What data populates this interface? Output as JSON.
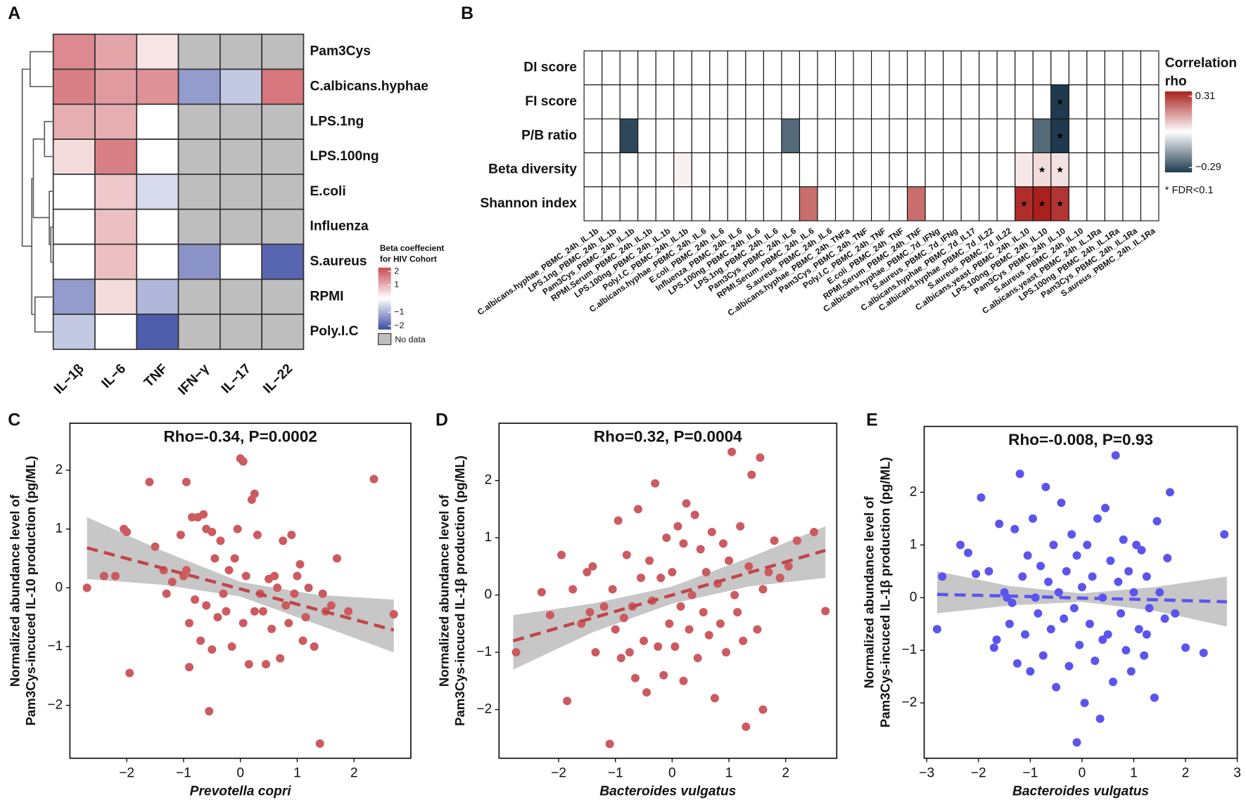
{
  "chart_data": [
    {
      "type": "heatmap",
      "panel": "A",
      "rows": [
        "Pam3Cys",
        "C.albicans.hyphae",
        "LPS.1ng",
        "LPS.100ng",
        "E.coli",
        "Influenza",
        "S.aureus",
        "RPMI",
        "Poly.I.C"
      ],
      "columns": [
        "IL−1β",
        "IL−6",
        "TNF",
        "IFN−γ",
        "IL−17",
        "IL−22"
      ],
      "values": [
        [
          1.3,
          1.0,
          0.3,
          null,
          null,
          null
        ],
        [
          1.4,
          1.1,
          1.2,
          -1.1,
          -0.6,
          1.5
        ],
        [
          0.9,
          0.9,
          0,
          null,
          null,
          null
        ],
        [
          0.4,
          1.4,
          0,
          null,
          null,
          null
        ],
        [
          0,
          0.6,
          -0.4,
          null,
          null,
          null
        ],
        [
          0,
          0.7,
          0,
          null,
          null,
          null
        ],
        [
          0,
          0.7,
          0,
          -1.2,
          0,
          -1.7
        ],
        [
          -1.1,
          0.4,
          -0.8,
          null,
          null,
          null
        ],
        [
          -0.6,
          0,
          -1.8,
          null,
          null,
          null
        ]
      ],
      "clim": [
        -2,
        2
      ],
      "colors": {
        "low": "#3a4ba3",
        "mid": "#ffffff",
        "high": "#c94a52",
        "na": "#bebebe"
      },
      "legend_title": [
        "Beta coeffecient",
        "for HIV Cohort"
      ],
      "legend_ticks": [
        2,
        1,
        {
          "value": -1,
          "label": "−1"
        },
        {
          "value": -2,
          "label": "−2"
        }
      ],
      "na_label": "No data"
    },
    {
      "type": "heatmap",
      "panel": "B",
      "rows": [
        "DI score",
        "FI score",
        "P/B ratio",
        "Beta diversity",
        "Shannon index"
      ],
      "columns": [
        "C.albicans.hyphae_PBMC_24h_IL.1b",
        "LPS.1ng_PBMC_24h_IL.1b",
        "Pam3Cys_PBMC_24h_IL.1b",
        "RPMI.Serum_PBMC_24h_IL.1b",
        "LPS.100ng_PBMC_24h_IL.1b",
        "Poly.I.C_PBMC_24h_IL.1b",
        "C.albicans.hyphae_PBMC_24h_IL.6",
        "E.coli_PBMC_24h_IL.6",
        "Influenza_PBMC_24h_IL.6",
        "LPS.100ng_PBMC_24h_IL.6",
        "LPS.1ng_PBMC_24h_IL.6",
        "Pam3Cys_PBMC_24h_IL.6",
        "RPMI.Serum_PBMC_24h_IL.6",
        "S.aureus_PBMC_24h_IL.6",
        "C.albicans.hyphae_PBMC_24h_TNFa",
        "Pam3Cys_PBMC_24h_TNF",
        "Poly.I.C_PBMC_24h_TNF",
        "E.coli_PBMC_24h_TNF",
        "RPMI.Serum_PBMC_24h_TNF",
        "C.albicans.hyphae_PBMC_7d_IFNg",
        "S.aureus_PBMC_7d_IFNg",
        "C.albicans.hyphae_PBMC_7d_IL17",
        "C.albicans.hyphae_PBMC_7d_IL22",
        "S.aureus_PBMC_7d_IL22",
        "C.albicans.yeast_PBMC_24h_IL.10",
        "LPS.100ng_PBMC_24h_IL.10",
        "Pam3Cys_PBMC_24h_IL.10",
        "S.aureus_PBMC_24h_IL.10",
        "C.albicans.yeast_PBMC_24h_IL.1Ra",
        "LPS.100ng_PBMC_24h_IL.1Ra",
        "Pam3Cys_PBMC_24h_IL.1Ra",
        "S.aureus_PBMC_24h_IL.1Ra"
      ],
      "values": [
        [
          null,
          null,
          null,
          null,
          null,
          null,
          null,
          null,
          null,
          null,
          null,
          null,
          null,
          null,
          null,
          null,
          null,
          null,
          null,
          null,
          null,
          null,
          null,
          null,
          null,
          null,
          null,
          null,
          null,
          null,
          null,
          null
        ],
        [
          null,
          null,
          null,
          null,
          null,
          null,
          null,
          null,
          null,
          null,
          null,
          null,
          null,
          null,
          null,
          null,
          null,
          null,
          null,
          null,
          null,
          null,
          null,
          null,
          null,
          null,
          -0.29,
          null,
          null,
          null,
          null,
          null
        ],
        [
          null,
          null,
          -0.27,
          null,
          null,
          null,
          null,
          null,
          null,
          null,
          null,
          -0.22,
          null,
          null,
          null,
          null,
          null,
          null,
          null,
          null,
          null,
          null,
          null,
          null,
          null,
          -0.22,
          -0.29,
          null,
          null,
          null,
          null,
          null
        ],
        [
          null,
          null,
          null,
          null,
          null,
          0.02,
          null,
          null,
          null,
          null,
          null,
          null,
          null,
          null,
          null,
          null,
          null,
          null,
          null,
          null,
          null,
          null,
          null,
          null,
          0.03,
          0.05,
          0.04,
          null,
          null,
          null,
          null,
          null
        ],
        [
          null,
          null,
          null,
          null,
          null,
          null,
          null,
          null,
          null,
          null,
          null,
          null,
          0.2,
          null,
          null,
          null,
          null,
          null,
          0.2,
          null,
          null,
          null,
          null,
          null,
          0.29,
          0.31,
          0.28,
          null,
          null,
          null,
          null,
          null
        ]
      ],
      "significant": [
        [
          1,
          26
        ],
        [
          2,
          26
        ],
        [
          3,
          25
        ],
        [
          3,
          26
        ],
        [
          4,
          24
        ],
        [
          4,
          25
        ],
        [
          4,
          26
        ]
      ],
      "sig_label": "* FDR<0.1",
      "clim": [
        -0.29,
        0.31
      ],
      "colors": {
        "low": "#1f3a4e",
        "mid": "#ffffff",
        "high": "#a9201d"
      },
      "legend_title": [
        "Correlation",
        "rho"
      ],
      "legend_ticks": [
        0.31,
        {
          "value": -0.29,
          "label": "−0.29"
        }
      ]
    },
    {
      "type": "scatter",
      "panel": "C",
      "title": "Rho=-0.34, P=0.0002",
      "xlabel": "Prevotella copri",
      "ylabel": [
        "Normalized abundance level of",
        "Pam3Cys-incuced IL-10 production (pg/ML)"
      ],
      "color": "#cc5a5f",
      "line_color": "#c0454b",
      "xlim": [
        -3,
        3
      ],
      "ylim": [
        -2.9,
        2.8
      ],
      "xticks": [
        {
          "value": -2,
          "label": "−2"
        },
        {
          "value": -1,
          "label": "−1"
        },
        0,
        1,
        2
      ],
      "yticks": [
        {
          "value": -2,
          "label": "−2"
        },
        {
          "value": -1,
          "label": "−1"
        },
        0,
        1,
        2
      ],
      "x": [
        -2.7,
        -2.4,
        -2.2,
        -2.05,
        -2.0,
        -1.95,
        -1.6,
        -1.5,
        -1.35,
        -1.3,
        -1.2,
        -1.05,
        -1.0,
        -0.95,
        -0.95,
        -0.9,
        -0.9,
        -0.85,
        -0.8,
        -0.75,
        -0.7,
        -0.65,
        -0.6,
        -0.6,
        -0.55,
        -0.5,
        -0.5,
        -0.45,
        -0.4,
        -0.35,
        -0.3,
        -0.25,
        -0.2,
        -0.15,
        -0.1,
        -0.05,
        0.0,
        0.05,
        0.05,
        0.1,
        0.15,
        0.2,
        0.25,
        0.25,
        0.3,
        0.35,
        0.4,
        0.45,
        0.5,
        0.55,
        0.6,
        0.65,
        0.7,
        0.75,
        0.8,
        0.85,
        0.9,
        0.95,
        1.0,
        1.05,
        1.1,
        1.15,
        1.2,
        1.3,
        1.4,
        1.45,
        1.5,
        1.6,
        1.7,
        1.9,
        2.35,
        2.7
      ],
      "values": [
        0.0,
        0.2,
        0.2,
        1.0,
        0.95,
        -1.45,
        1.8,
        0.7,
        0.3,
        -0.1,
        0.1,
        0.9,
        0.2,
        1.8,
        0.3,
        -0.6,
        -1.35,
        1.2,
        -0.2,
        1.2,
        -0.9,
        1.25,
        1.0,
        -0.3,
        -2.1,
        0.95,
        -1.05,
        0.5,
        -0.5,
        0.8,
        -0.1,
        -0.4,
        0.3,
        -1.0,
        0.5,
        1.0,
        2.2,
        2.15,
        -0.6,
        0.2,
        -1.3,
        1.5,
        1.6,
        -0.4,
        0.9,
        -0.1,
        -0.4,
        -1.3,
        0.15,
        -0.7,
        0.2,
        0.0,
        -1.2,
        0.8,
        -0.3,
        -0.6,
        0.9,
        -0.1,
        0.2,
        0.4,
        -0.9,
        -0.5,
        0.0,
        -1.0,
        -2.65,
        -0.1,
        -0.4,
        -0.3,
        0.5,
        -0.4,
        1.85,
        -0.45
      ],
      "fit": {
        "x": [
          -2.7,
          -1.35,
          0,
          1.35,
          2.7
        ],
        "y": [
          0.68,
          0.33,
          -0.02,
          -0.37,
          -0.72
        ],
        "lower": [
          0.15,
          0.05,
          -0.15,
          -0.62,
          -1.1
        ],
        "upper": [
          1.2,
          0.62,
          0.1,
          -0.12,
          -0.2
        ]
      }
    },
    {
      "type": "scatter",
      "panel": "D",
      "title": "Rho=0.32, P=0.0004",
      "xlabel": "Bacteroides vulgatus",
      "ylabel": [
        "Normalized abundance level of",
        "Pam3Cys-incuced IL-1β production (pg/ML)"
      ],
      "color": "#cc5a5f",
      "line_color": "#c0454b",
      "xlim": [
        -3.05,
        2.9
      ],
      "ylim": [
        -2.85,
        3.0
      ],
      "xticks": [
        {
          "value": -2,
          "label": "−2"
        },
        {
          "value": -1,
          "label": "−1"
        },
        0,
        1,
        2
      ],
      "yticks": [
        {
          "value": -2,
          "label": "−2"
        },
        {
          "value": -1,
          "label": "−1"
        },
        0,
        1,
        2
      ],
      "x": [
        -2.75,
        -2.3,
        -2.15,
        -1.95,
        -1.85,
        -1.75,
        -1.6,
        -1.5,
        -1.45,
        -1.4,
        -1.35,
        -1.2,
        -1.1,
        -1.05,
        -1.0,
        -0.95,
        -0.9,
        -0.85,
        -0.8,
        -0.75,
        -0.7,
        -0.65,
        -0.6,
        -0.55,
        -0.5,
        -0.45,
        -0.4,
        -0.35,
        -0.3,
        -0.25,
        -0.2,
        -0.15,
        -0.1,
        -0.05,
        0.0,
        0.05,
        0.1,
        0.15,
        0.2,
        0.25,
        0.3,
        0.35,
        0.4,
        0.45,
        0.5,
        0.55,
        0.6,
        0.65,
        0.7,
        0.75,
        0.8,
        0.85,
        0.9,
        0.95,
        1.0,
        1.05,
        1.1,
        1.15,
        1.2,
        1.25,
        1.3,
        1.35,
        1.4,
        1.5,
        1.55,
        1.6,
        1.7,
        1.8,
        1.9,
        2.05,
        2.2,
        2.5,
        2.7,
        1.6,
        0.2
      ],
      "values": [
        -1.0,
        0.05,
        -0.35,
        0.7,
        -1.85,
        0.1,
        -0.5,
        0.4,
        -0.3,
        0.5,
        -1.0,
        -0.2,
        -2.6,
        0.1,
        -0.6,
        1.3,
        -1.1,
        -0.4,
        0.7,
        -1.0,
        -0.2,
        -1.45,
        1.5,
        0.3,
        -0.8,
        -1.7,
        0.6,
        -0.1,
        1.95,
        -0.9,
        0.3,
        -1.4,
        1.0,
        -0.5,
        0.4,
        -0.9,
        1.2,
        -0.2,
        0.9,
        1.6,
        -0.6,
        0.0,
        1.4,
        -1.1,
        0.8,
        -0.3,
        0.4,
        -0.7,
        1.1,
        -1.8,
        0.2,
        -0.5,
        0.9,
        -1.0,
        0.6,
        2.5,
        0.0,
        -0.3,
        1.2,
        -0.8,
        -2.3,
        0.5,
        2.1,
        -0.6,
        2.4,
        -2.0,
        0.4,
        0.95,
        0.3,
        0.5,
        0.95,
        1.1,
        -0.28,
        0.1,
        -1.5
      ],
      "fit": {
        "x": [
          -2.8,
          -1.4,
          0,
          1.35,
          2.7
        ],
        "y": [
          -0.8,
          -0.4,
          0.0,
          0.39,
          0.78
        ],
        "lower": [
          -1.3,
          -0.65,
          -0.15,
          0.15,
          0.3
        ],
        "upper": [
          -0.35,
          -0.15,
          0.15,
          0.65,
          1.2
        ]
      }
    },
    {
      "type": "scatter",
      "panel": "E",
      "title": "Rho=-0.008, P=0.93",
      "xlabel": "Bacteroides vulgatus",
      "ylabel": [
        "Normalized abundance level of",
        "Pam3Cys-incuced IL-1β production (pg/ML)"
      ],
      "color": "#5a55ee",
      "line_color": "#5a55ee",
      "xlim": [
        -3.05,
        3.0
      ],
      "ylim": [
        -3.05,
        3.25
      ],
      "xticks": [
        {
          "value": -3,
          "label": "−3"
        },
        {
          "value": -2,
          "label": "−2"
        },
        {
          "value": -1,
          "label": "−1"
        },
        0,
        1,
        2,
        3
      ],
      "yticks": [
        {
          "value": -2,
          "label": "−2"
        },
        {
          "value": -1,
          "label": "−1"
        },
        0,
        1,
        2
      ],
      "x": [
        -2.8,
        -2.35,
        -2.2,
        -2.05,
        -1.95,
        -1.8,
        -1.7,
        -1.65,
        -1.6,
        -1.5,
        -1.45,
        -1.4,
        -1.35,
        -1.3,
        -1.25,
        -1.2,
        -1.15,
        -1.1,
        -1.05,
        -1.0,
        -0.95,
        -0.9,
        -0.85,
        -0.8,
        -0.75,
        -0.7,
        -0.65,
        -0.6,
        -0.55,
        -0.5,
        -0.45,
        -0.4,
        -0.35,
        -0.3,
        -0.25,
        -0.2,
        -0.15,
        -0.1,
        -0.05,
        0.0,
        0.05,
        0.1,
        0.15,
        0.2,
        0.25,
        0.3,
        0.35,
        0.4,
        0.45,
        0.5,
        0.55,
        0.6,
        0.65,
        0.7,
        0.75,
        0.8,
        0.85,
        0.9,
        0.95,
        1.0,
        1.05,
        1.1,
        1.15,
        1.2,
        1.25,
        1.3,
        1.4,
        1.45,
        1.5,
        1.6,
        1.7,
        1.8,
        2.0,
        2.35,
        2.75,
        -2.7,
        1.65,
        0.4,
        -0.1,
        1.25
      ],
      "values": [
        -0.6,
        1.0,
        0.85,
        0.45,
        1.9,
        0.5,
        -0.95,
        -0.8,
        1.4,
        0.1,
        0.0,
        -0.5,
        -0.1,
        1.3,
        -1.25,
        2.35,
        0.4,
        -0.7,
        0.8,
        -1.4,
        1.5,
        0.0,
        -0.3,
        0.6,
        -1.1,
        2.1,
        0.3,
        -0.6,
        1.0,
        -1.7,
        0.1,
        1.8,
        -0.4,
        0.5,
        -1.3,
        1.2,
        -0.2,
        0.8,
        -0.9,
        0.2,
        -2.0,
        1.0,
        -0.5,
        0.4,
        -1.2,
        1.5,
        -2.3,
        0.0,
        1.7,
        -0.7,
        0.7,
        -1.6,
        2.7,
        0.3,
        -0.3,
        1.1,
        -1.0,
        0.5,
        -1.4,
        0.1,
        1.0,
        -0.6,
        0.9,
        -1.1,
        0.4,
        -0.2,
        -1.9,
        1.45,
        0.1,
        -0.4,
        2.0,
        -0.3,
        -0.95,
        -1.05,
        1.2,
        0.4,
        0.75,
        -0.8,
        -2.75,
        -0.7
      ],
      "fit": {
        "x": [
          -2.8,
          -1.4,
          0,
          1.4,
          2.8
        ],
        "y": [
          0.06,
          0.03,
          -0.01,
          -0.04,
          -0.08
        ],
        "lower": [
          -0.3,
          -0.15,
          -0.08,
          -0.25,
          -0.55
        ],
        "upper": [
          0.5,
          0.22,
          0.08,
          0.2,
          0.4
        ]
      }
    }
  ]
}
